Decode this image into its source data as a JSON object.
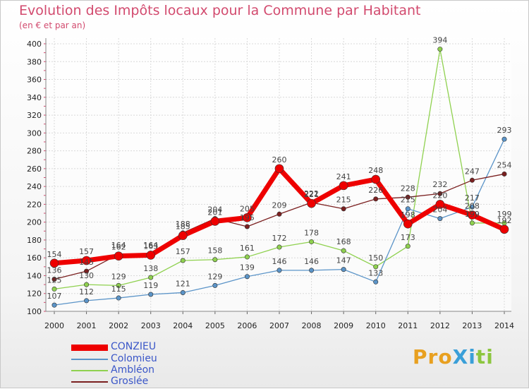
{
  "header": {
    "title": "Evolution des Impôts locaux pour la Commune par Habitant",
    "subtitle": "(en € et par an)"
  },
  "logo": {
    "text": "ProXiti",
    "colors": [
      "#e8a020",
      "#3a9fd8",
      "#8cc63f"
    ]
  },
  "chart_data": {
    "type": "line",
    "title": "Evolution des Impôts locaux pour la Commune par Habitant",
    "subtitle": "(en € et par an)",
    "xlabel": "",
    "ylabel": "",
    "categories": [
      "2000",
      "2001",
      "2002",
      "2003",
      "2004",
      "2005",
      "2006",
      "2007",
      "2008",
      "2009",
      "2010",
      "2011",
      "2012",
      "2013",
      "2014"
    ],
    "ylim": [
      100,
      400
    ],
    "yticks": [
      100,
      120,
      140,
      160,
      180,
      200,
      220,
      240,
      260,
      280,
      300,
      320,
      340,
      360,
      380,
      400
    ],
    "grid": true,
    "legend_position": "bottom-left",
    "series": [
      {
        "name": "CONZIEU",
        "color": "#ee0000",
        "values": [
          154,
          157,
          162,
          163,
          185,
          201,
          205,
          260,
          221,
          241,
          248,
          198,
          220,
          208,
          192
        ]
      },
      {
        "name": "Colomieu",
        "color": "#5b94c8",
        "values": [
          107,
          112,
          115,
          119,
          121,
          129,
          139,
          146,
          146,
          147,
          133,
          215,
          204,
          217,
          293
        ]
      },
      {
        "name": "Ambléon",
        "color": "#8fd14f",
        "values": [
          125,
          130,
          129,
          138,
          157,
          158,
          161,
          172,
          178,
          168,
          150,
          173,
          394,
          199,
          199
        ]
      },
      {
        "name": "Groslée",
        "color": "#7b2020",
        "values": [
          136,
          145,
          164,
          164,
          188,
          204,
          195,
          209,
          222,
          215,
          226,
          228,
          232,
          247,
          254
        ]
      }
    ]
  }
}
